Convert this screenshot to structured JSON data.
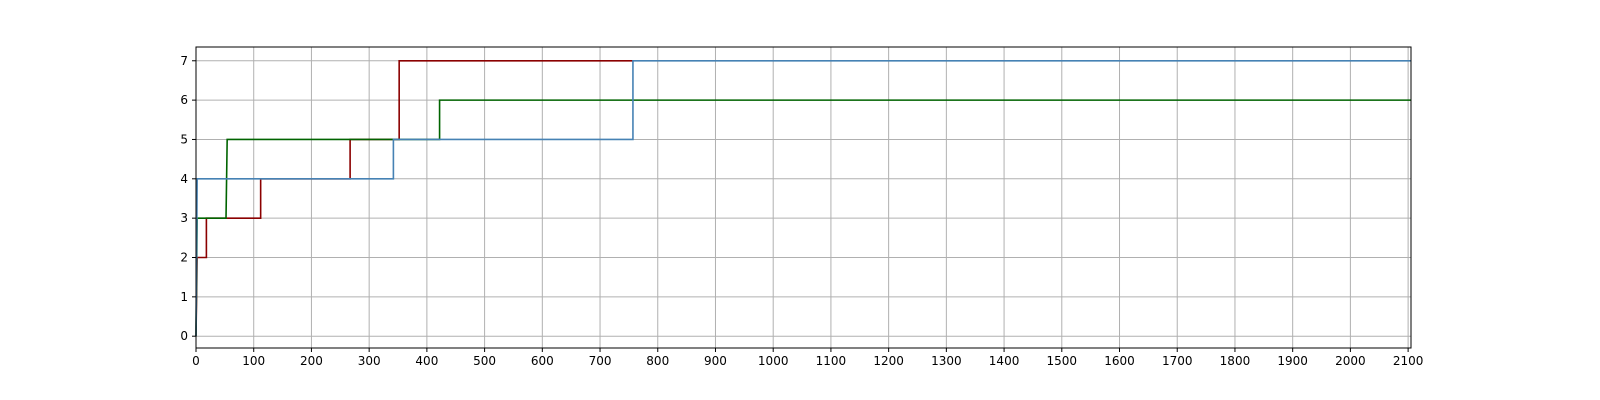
{
  "chart_data": {
    "type": "line",
    "step": true,
    "title": "",
    "xlabel": "",
    "ylabel": "",
    "xlim": [
      0,
      2105
    ],
    "ylim": [
      -0.3,
      7.35
    ],
    "xticks": [
      0,
      100,
      200,
      300,
      400,
      500,
      600,
      700,
      800,
      900,
      1000,
      1100,
      1200,
      1300,
      1400,
      1500,
      1600,
      1700,
      1800,
      1900,
      2000,
      2100
    ],
    "yticks": [
      0,
      1,
      2,
      3,
      4,
      5,
      6,
      7
    ],
    "grid": true,
    "legend": "none",
    "series": [
      {
        "color": "#8b0000",
        "points": [
          [
            0,
            0
          ],
          [
            2,
            2
          ],
          [
            18,
            2
          ],
          [
            18,
            3
          ],
          [
            112,
            3
          ],
          [
            112,
            4
          ],
          [
            267,
            4
          ],
          [
            267,
            5
          ],
          [
            352,
            5
          ],
          [
            352,
            7
          ],
          [
            757,
            7
          ]
        ]
      },
      {
        "color": "#006400",
        "points": [
          [
            0,
            0
          ],
          [
            2,
            3
          ],
          [
            52,
            3
          ],
          [
            54,
            5
          ],
          [
            422,
            5
          ],
          [
            422,
            6
          ],
          [
            2105,
            6
          ]
        ]
      },
      {
        "color": "#4682b4",
        "points": [
          [
            0,
            0
          ],
          [
            2,
            4
          ],
          [
            342,
            4
          ],
          [
            342,
            5
          ],
          [
            757,
            5
          ],
          [
            757,
            7
          ],
          [
            2105,
            7
          ]
        ]
      }
    ]
  }
}
